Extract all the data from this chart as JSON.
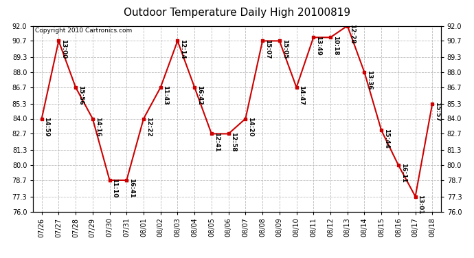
{
  "title": "Outdoor Temperature Daily High 20100819",
  "copyright": "Copyright 2010 Cartronics.com",
  "dates": [
    "07/26",
    "07/27",
    "07/28",
    "07/29",
    "07/30",
    "07/31",
    "08/01",
    "08/02",
    "08/03",
    "08/04",
    "08/05",
    "08/06",
    "08/07",
    "08/08",
    "08/09",
    "08/10",
    "08/11",
    "08/12",
    "08/13",
    "08/14",
    "08/15",
    "08/16",
    "08/17",
    "08/18"
  ],
  "temps": [
    84.0,
    90.7,
    86.7,
    84.0,
    78.7,
    78.7,
    84.0,
    86.7,
    90.7,
    86.7,
    82.7,
    82.7,
    84.0,
    90.7,
    90.7,
    86.7,
    91.0,
    91.0,
    92.0,
    88.0,
    83.0,
    80.0,
    77.3,
    85.3
  ],
  "time_labels": [
    "14:59",
    "13:00",
    "15:56",
    "14:16",
    "11:10",
    "16:41",
    "12:22",
    "11:43",
    "12:14",
    "16:42",
    "12:41",
    "12:58",
    "14:20",
    "15:07",
    "15:05",
    "14:47",
    "13:49",
    "10:18",
    "12:28",
    "13:36",
    "15:44",
    "16:11",
    "13:01",
    "15:57"
  ],
  "ylim": [
    76.0,
    92.0
  ],
  "yticks": [
    76.0,
    77.3,
    78.7,
    80.0,
    81.3,
    82.7,
    84.0,
    85.3,
    86.7,
    88.0,
    89.3,
    90.7,
    92.0
  ],
  "line_color": "#cc0000",
  "marker_color": "#cc0000",
  "background_color": "#ffffff",
  "grid_color": "#bbbbbb",
  "title_fontsize": 11,
  "label_fontsize": 6.5,
  "tick_fontsize": 7,
  "copyright_fontsize": 6.5
}
